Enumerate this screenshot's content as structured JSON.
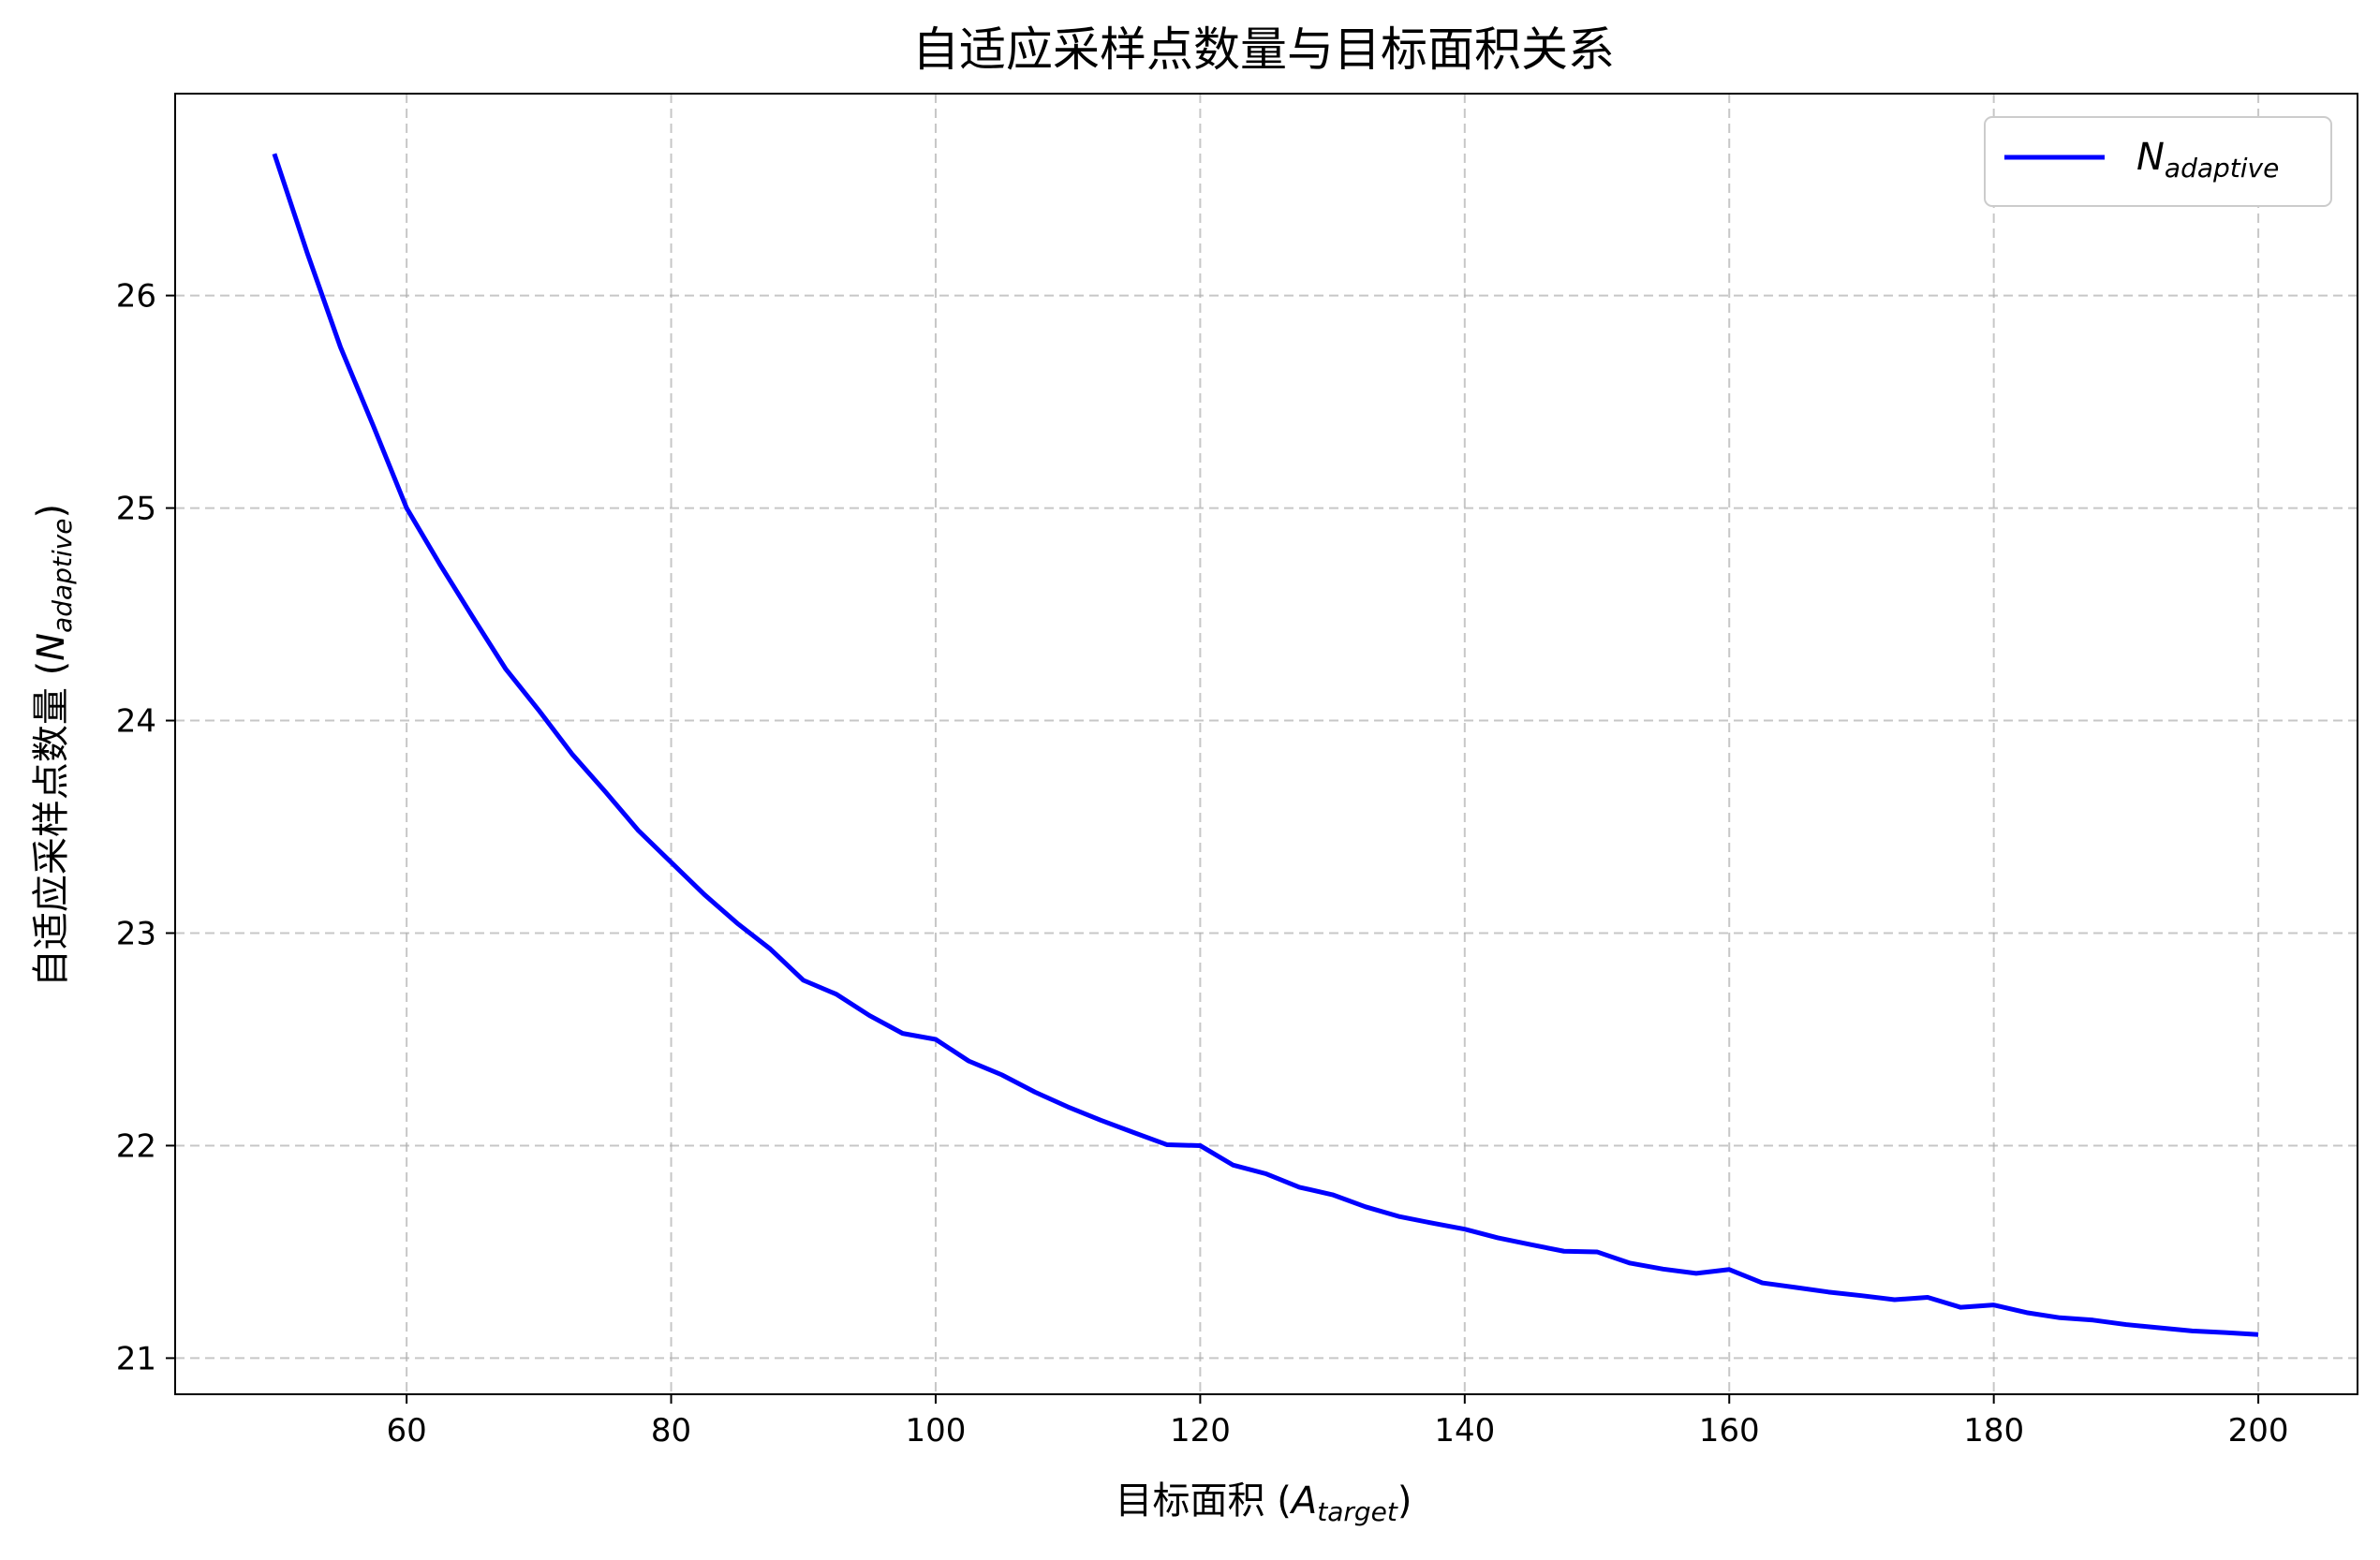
{
  "chart_data": {
    "type": "line",
    "title": "自适应采样点数量与目标面积关系",
    "xlabel": {
      "main": "目标面积 (",
      "symbol": "A",
      "subscript": "target",
      "suffix": ")"
    },
    "ylabel": {
      "main": "自适应采样点数量 (",
      "symbol": "N",
      "subscript": "adaptive",
      "suffix": ")"
    },
    "xlim": [
      42.5,
      207.5
    ],
    "ylim": [
      20.83,
      26.95
    ],
    "xticks": [
      60,
      80,
      100,
      120,
      140,
      160,
      180,
      200
    ],
    "xtick_labels": [
      "60",
      "80",
      "100",
      "120",
      "140",
      "160",
      "180",
      "200"
    ],
    "yticks": [
      21,
      22,
      23,
      24,
      25,
      26
    ],
    "ytick_labels": [
      "21",
      "22",
      "23",
      "24",
      "25",
      "26"
    ],
    "grid": true,
    "legend_position": "top-right",
    "series": [
      {
        "name": "N_adaptive",
        "legend_label": {
          "symbol": "N",
          "subscript": "adaptive"
        },
        "color": "#0000ff",
        "x": [
          50,
          52.5,
          55,
          57.5,
          60,
          62.5,
          65,
          67.5,
          70,
          72.5,
          75,
          77.5,
          80,
          82.5,
          85,
          87.5,
          90,
          92.5,
          95,
          97.5,
          100,
          102.5,
          105,
          107.5,
          110,
          112.5,
          115,
          117.5,
          120,
          122.5,
          125,
          127.5,
          130,
          132.5,
          135,
          137.5,
          140,
          142.5,
          145,
          147.5,
          150,
          152.5,
          155,
          157.5,
          160,
          162.5,
          165,
          167.5,
          170,
          172.5,
          175,
          177.5,
          180,
          182.5,
          185,
          187.5,
          190,
          192.5,
          195,
          197.5,
          200
        ],
        "y": [
          26.667,
          26.198,
          25.757,
          25.384,
          25.0,
          24.737,
          24.487,
          24.242,
          24.048,
          23.843,
          23.667,
          23.484,
          23.333,
          23.182,
          23.046,
          22.925,
          22.778,
          22.712,
          22.612,
          22.528,
          22.5,
          22.398,
          22.333,
          22.252,
          22.182,
          22.119,
          22.061,
          22.004,
          22.0,
          21.908,
          21.867,
          21.804,
          21.769,
          21.712,
          21.667,
          21.636,
          21.607,
          21.566,
          21.534,
          21.503,
          21.5,
          21.447,
          21.419,
          21.399,
          21.417,
          21.354,
          21.333,
          21.311,
          21.294,
          21.275,
          21.286,
          21.239,
          21.25,
          21.214,
          21.19,
          21.179,
          21.158,
          21.143,
          21.128,
          21.12,
          21.111
        ]
      }
    ]
  }
}
